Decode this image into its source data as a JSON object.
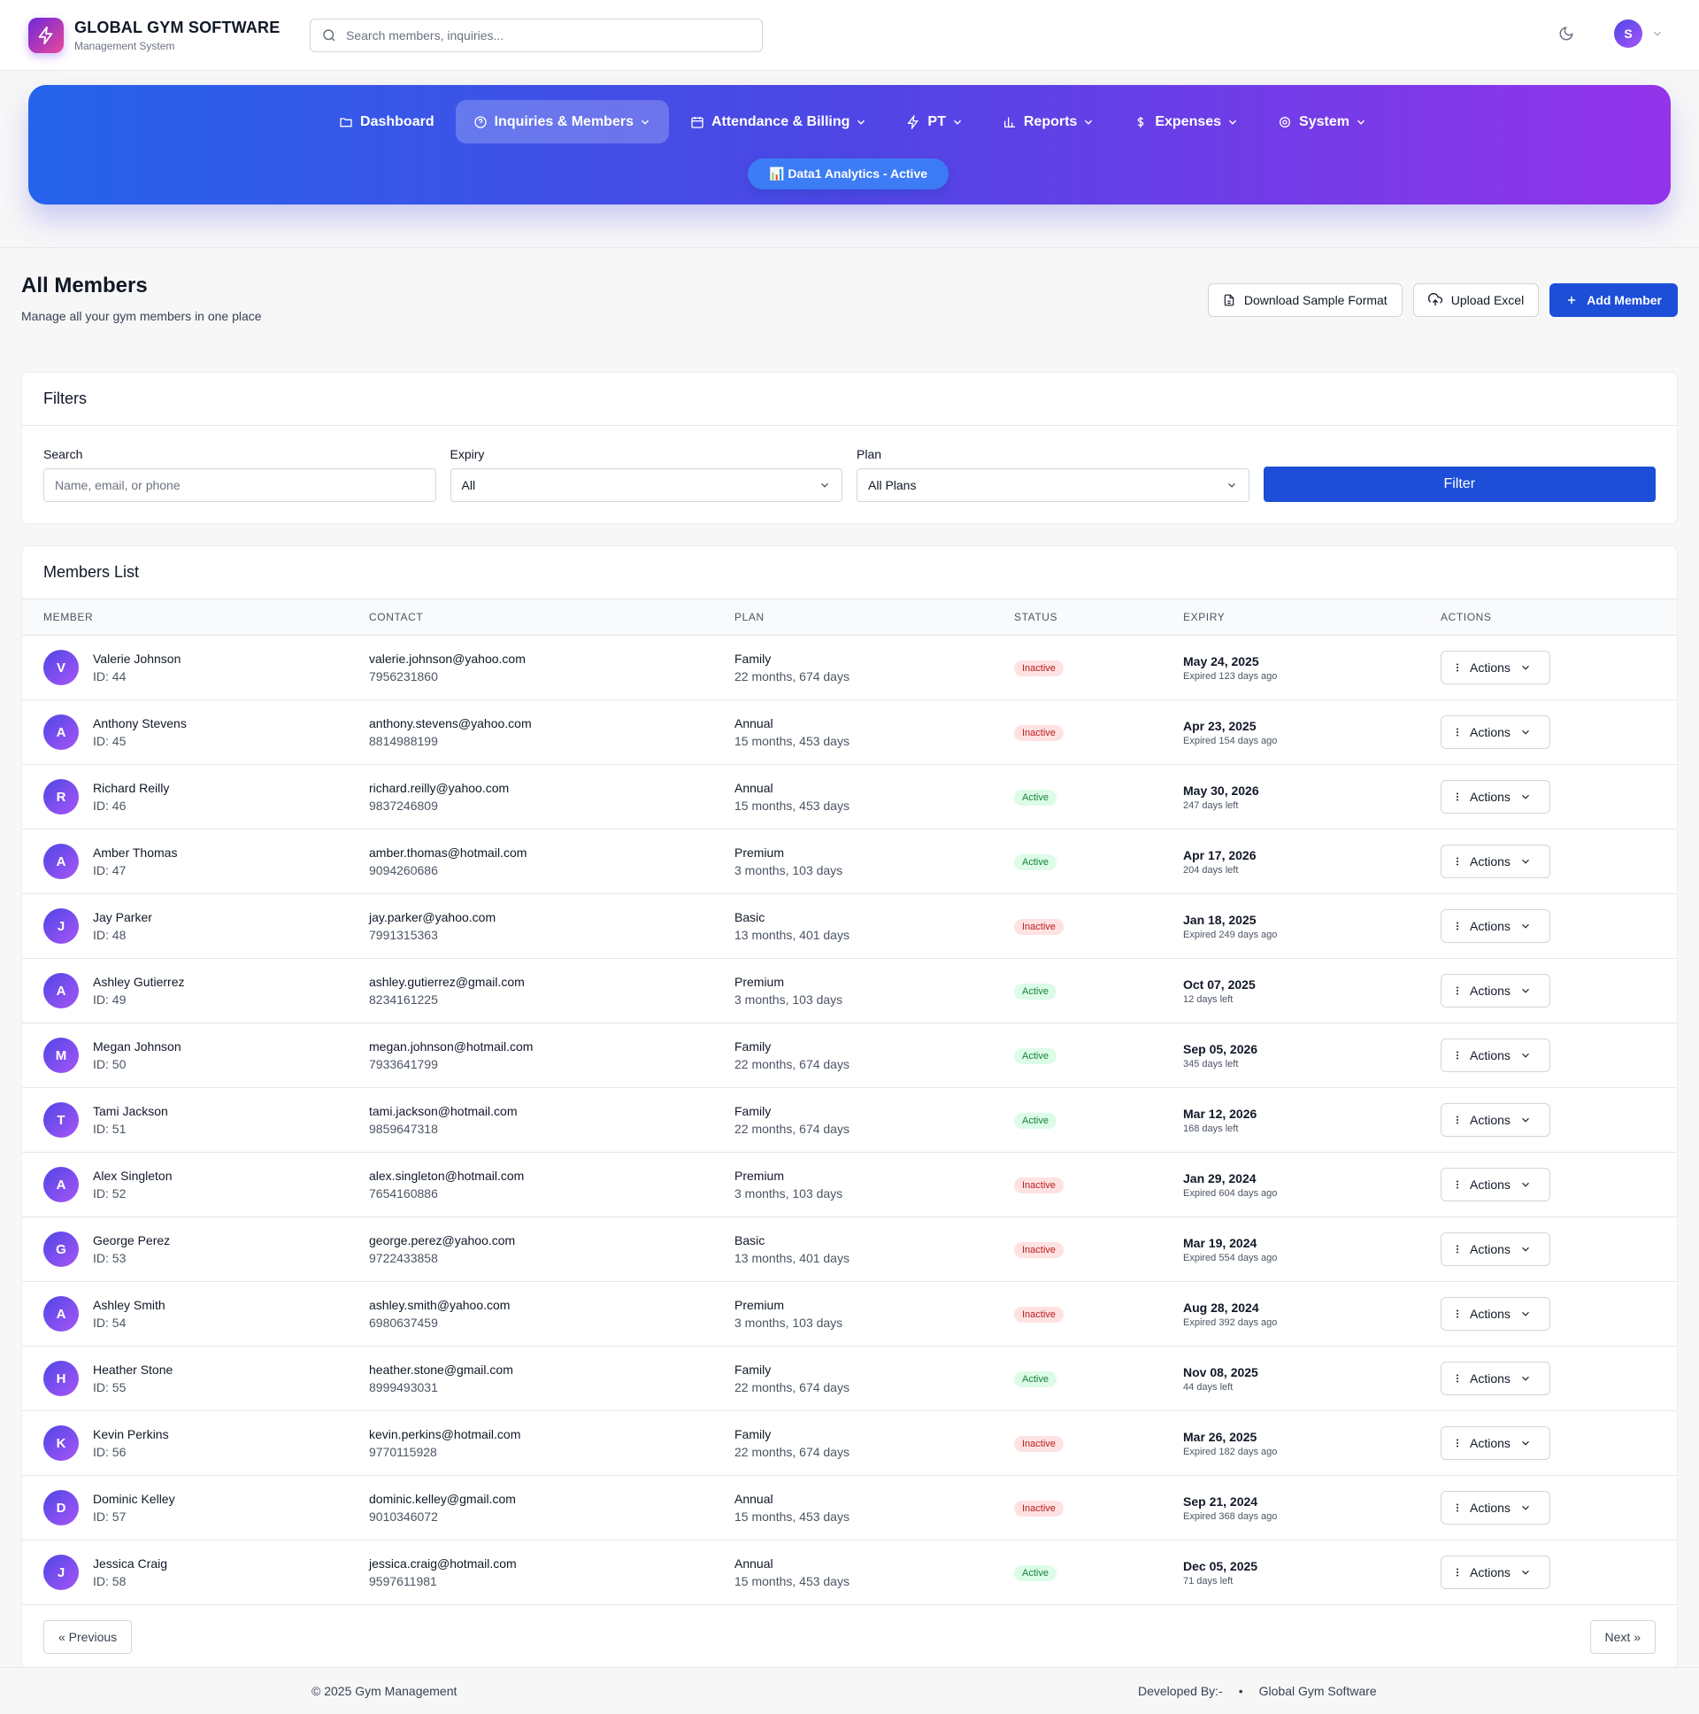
{
  "brand": {
    "title": "GLOBAL GYM SOFTWARE",
    "subtitle": "Management System",
    "accent": "#7c3aed"
  },
  "search": {
    "placeholder": "Search members, inquiries..."
  },
  "user": {
    "initial": "S"
  },
  "nav": {
    "items": [
      {
        "label": "Dashboard",
        "icon": "folder-icon",
        "active": false,
        "dropdown": false
      },
      {
        "label": "Inquiries & Members",
        "icon": "help-circle-icon",
        "active": true,
        "dropdown": true
      },
      {
        "label": "Attendance & Billing",
        "icon": "calendar-icon",
        "active": false,
        "dropdown": true
      },
      {
        "label": "PT",
        "icon": "lightning-icon",
        "active": false,
        "dropdown": true
      },
      {
        "label": "Reports",
        "icon": "bar-chart-icon",
        "active": false,
        "dropdown": true
      },
      {
        "label": "Expenses",
        "icon": "dollar-icon",
        "active": false,
        "dropdown": true
      },
      {
        "label": "System",
        "icon": "settings-icon",
        "active": false,
        "dropdown": true
      }
    ],
    "badge": "📊 Data1 Analytics - Active"
  },
  "page": {
    "title": "All Members",
    "subtitle": "Manage all your gym members in one place",
    "buttons": {
      "download": "Download Sample Format",
      "upload": "Upload Excel",
      "add": "Add Member"
    }
  },
  "filters": {
    "title": "Filters",
    "search_label": "Search",
    "search_placeholder": "Name, email, or phone",
    "expiry_label": "Expiry",
    "expiry_value": "All",
    "plan_label": "Plan",
    "plan_value": "All Plans",
    "filter_button": "Filter"
  },
  "members": {
    "title": "Members List",
    "columns": [
      "MEMBER",
      "CONTACT",
      "PLAN",
      "STATUS",
      "EXPIRY",
      "ACTIONS"
    ],
    "action_label": "Actions",
    "rows": [
      {
        "initial": "V",
        "name": "Valerie Johnson",
        "id": "ID: 44",
        "email": "valerie.johnson@yahoo.com",
        "phone": "7956231860",
        "plan": "Family",
        "duration": "22 months, 674 days",
        "status": "Inactive",
        "expiry": "May 24, 2025",
        "expiry_note": "Expired 123 days ago"
      },
      {
        "initial": "A",
        "name": "Anthony Stevens",
        "id": "ID: 45",
        "email": "anthony.stevens@yahoo.com",
        "phone": "8814988199",
        "plan": "Annual",
        "duration": "15 months, 453 days",
        "status": "Inactive",
        "expiry": "Apr 23, 2025",
        "expiry_note": "Expired 154 days ago"
      },
      {
        "initial": "R",
        "name": "Richard Reilly",
        "id": "ID: 46",
        "email": "richard.reilly@yahoo.com",
        "phone": "9837246809",
        "plan": "Annual",
        "duration": "15 months, 453 days",
        "status": "Active",
        "expiry": "May 30, 2026",
        "expiry_note": "247 days left"
      },
      {
        "initial": "A",
        "name": "Amber Thomas",
        "id": "ID: 47",
        "email": "amber.thomas@hotmail.com",
        "phone": "9094260686",
        "plan": "Premium",
        "duration": "3 months, 103 days",
        "status": "Active",
        "expiry": "Apr 17, 2026",
        "expiry_note": "204 days left"
      },
      {
        "initial": "J",
        "name": "Jay Parker",
        "id": "ID: 48",
        "email": "jay.parker@yahoo.com",
        "phone": "7991315363",
        "plan": "Basic",
        "duration": "13 months, 401 days",
        "status": "Inactive",
        "expiry": "Jan 18, 2025",
        "expiry_note": "Expired 249 days ago"
      },
      {
        "initial": "A",
        "name": "Ashley Gutierrez",
        "id": "ID: 49",
        "email": "ashley.gutierrez@gmail.com",
        "phone": "8234161225",
        "plan": "Premium",
        "duration": "3 months, 103 days",
        "status": "Active",
        "expiry": "Oct 07, 2025",
        "expiry_note": "12 days left"
      },
      {
        "initial": "M",
        "name": "Megan Johnson",
        "id": "ID: 50",
        "email": "megan.johnson@hotmail.com",
        "phone": "7933641799",
        "plan": "Family",
        "duration": "22 months, 674 days",
        "status": "Active",
        "expiry": "Sep 05, 2026",
        "expiry_note": "345 days left"
      },
      {
        "initial": "T",
        "name": "Tami Jackson",
        "id": "ID: 51",
        "email": "tami.jackson@hotmail.com",
        "phone": "9859647318",
        "plan": "Family",
        "duration": "22 months, 674 days",
        "status": "Active",
        "expiry": "Mar 12, 2026",
        "expiry_note": "168 days left"
      },
      {
        "initial": "A",
        "name": "Alex Singleton",
        "id": "ID: 52",
        "email": "alex.singleton@hotmail.com",
        "phone": "7654160886",
        "plan": "Premium",
        "duration": "3 months, 103 days",
        "status": "Inactive",
        "expiry": "Jan 29, 2024",
        "expiry_note": "Expired 604 days ago"
      },
      {
        "initial": "G",
        "name": "George Perez",
        "id": "ID: 53",
        "email": "george.perez@yahoo.com",
        "phone": "9722433858",
        "plan": "Basic",
        "duration": "13 months, 401 days",
        "status": "Inactive",
        "expiry": "Mar 19, 2024",
        "expiry_note": "Expired 554 days ago"
      },
      {
        "initial": "A",
        "name": "Ashley Smith",
        "id": "ID: 54",
        "email": "ashley.smith@yahoo.com",
        "phone": "6980637459",
        "plan": "Premium",
        "duration": "3 months, 103 days",
        "status": "Inactive",
        "expiry": "Aug 28, 2024",
        "expiry_note": "Expired 392 days ago"
      },
      {
        "initial": "H",
        "name": "Heather Stone",
        "id": "ID: 55",
        "email": "heather.stone@gmail.com",
        "phone": "8999493031",
        "plan": "Family",
        "duration": "22 months, 674 days",
        "status": "Active",
        "expiry": "Nov 08, 2025",
        "expiry_note": "44 days left"
      },
      {
        "initial": "K",
        "name": "Kevin Perkins",
        "id": "ID: 56",
        "email": "kevin.perkins@hotmail.com",
        "phone": "9770115928",
        "plan": "Family",
        "duration": "22 months, 674 days",
        "status": "Inactive",
        "expiry": "Mar 26, 2025",
        "expiry_note": "Expired 182 days ago"
      },
      {
        "initial": "D",
        "name": "Dominic Kelley",
        "id": "ID: 57",
        "email": "dominic.kelley@gmail.com",
        "phone": "9010346072",
        "plan": "Annual",
        "duration": "15 months, 453 days",
        "status": "Inactive",
        "expiry": "Sep 21, 2024",
        "expiry_note": "Expired 368 days ago"
      },
      {
        "initial": "J",
        "name": "Jessica Craig",
        "id": "ID: 58",
        "email": "jessica.craig@hotmail.com",
        "phone": "9597611981",
        "plan": "Annual",
        "duration": "15 months, 453 days",
        "status": "Active",
        "expiry": "Dec 05, 2025",
        "expiry_note": "71 days left"
      }
    ]
  },
  "pagination": {
    "previous": "« Previous",
    "next": "Next »"
  },
  "footer": {
    "copyright": "© 2025 Gym Management",
    "developed_by": "Developed By:-",
    "developer": "Global Gym Software"
  }
}
